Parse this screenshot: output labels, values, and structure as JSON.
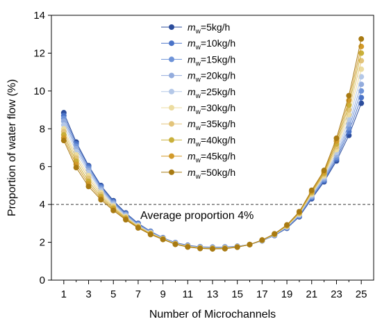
{
  "chart_data": {
    "type": "line",
    "xlabel": "Number of Microchannels",
    "ylabel": "Proportion of water flow (%)",
    "xlim": [
      0,
      26
    ],
    "ylim": [
      0,
      14
    ],
    "x_ticks": [
      1,
      3,
      5,
      7,
      9,
      11,
      13,
      15,
      17,
      19,
      21,
      23,
      25
    ],
    "y_ticks": [
      0,
      2,
      4,
      6,
      8,
      10,
      12,
      14
    ],
    "x": [
      1,
      2,
      3,
      4,
      5,
      6,
      7,
      8,
      9,
      10,
      11,
      12,
      13,
      14,
      15,
      16,
      17,
      18,
      19,
      20,
      21,
      22,
      23,
      24,
      25
    ],
    "reference_line": {
      "y": 4,
      "style": "dashed",
      "label": "Average proportion 4%"
    },
    "legend_position": "top-center",
    "legend_symbol": "m",
    "legend_subscript": "w",
    "series": [
      {
        "name": "=5kg/h",
        "color": "#2b4c9b",
        "values": [
          8.85,
          7.3,
          6.05,
          5.0,
          4.2,
          3.55,
          3.0,
          2.58,
          2.24,
          1.98,
          1.84,
          1.76,
          1.74,
          1.75,
          1.79,
          1.88,
          2.08,
          2.36,
          2.74,
          3.35,
          4.3,
          5.2,
          6.3,
          7.65,
          9.35
        ]
      },
      {
        "name": "=10kg/h",
        "color": "#4a73c8",
        "values": [
          8.7,
          7.2,
          6.0,
          4.95,
          4.15,
          3.52,
          2.98,
          2.57,
          2.23,
          1.97,
          1.83,
          1.75,
          1.73,
          1.74,
          1.78,
          1.88,
          2.08,
          2.37,
          2.76,
          3.38,
          4.35,
          5.25,
          6.4,
          7.85,
          9.65
        ]
      },
      {
        "name": "=15kg/h",
        "color": "#6e93d8",
        "values": [
          8.55,
          7.08,
          5.9,
          4.88,
          4.1,
          3.48,
          2.95,
          2.55,
          2.22,
          1.96,
          1.82,
          1.74,
          1.72,
          1.73,
          1.78,
          1.88,
          2.09,
          2.38,
          2.78,
          3.41,
          4.4,
          5.32,
          6.5,
          8.05,
          10.0
        ]
      },
      {
        "name": "=20kg/h",
        "color": "#93acdd",
        "values": [
          8.4,
          6.95,
          5.8,
          4.8,
          4.05,
          3.45,
          2.92,
          2.53,
          2.21,
          1.95,
          1.81,
          1.73,
          1.71,
          1.72,
          1.77,
          1.88,
          2.09,
          2.39,
          2.8,
          3.44,
          4.45,
          5.38,
          6.62,
          8.25,
          10.35
        ]
      },
      {
        "name": "=25kg/h",
        "color": "#b4c8e8",
        "values": [
          8.2,
          6.8,
          5.68,
          4.72,
          3.98,
          3.4,
          2.89,
          2.51,
          2.2,
          1.94,
          1.8,
          1.72,
          1.7,
          1.71,
          1.77,
          1.88,
          2.1,
          2.4,
          2.82,
          3.47,
          4.5,
          5.45,
          6.75,
          8.5,
          10.75
        ]
      },
      {
        "name": "=30kg/h",
        "color": "#ecdca0",
        "values": [
          8.0,
          6.62,
          5.52,
          4.62,
          3.92,
          3.35,
          2.86,
          2.49,
          2.19,
          1.93,
          1.79,
          1.71,
          1.69,
          1.7,
          1.76,
          1.88,
          2.1,
          2.41,
          2.84,
          3.5,
          4.55,
          5.52,
          6.9,
          8.75,
          11.15
        ]
      },
      {
        "name": "=35kg/h",
        "color": "#e3c47a",
        "values": [
          7.85,
          6.45,
          5.38,
          4.52,
          3.86,
          3.31,
          2.83,
          2.47,
          2.18,
          1.92,
          1.78,
          1.7,
          1.68,
          1.69,
          1.76,
          1.88,
          2.11,
          2.42,
          2.86,
          3.53,
          4.6,
          5.58,
          7.05,
          9.0,
          11.6
        ]
      },
      {
        "name": "=40kg/h",
        "color": "#c9b03a",
        "values": [
          7.68,
          6.28,
          5.22,
          4.42,
          3.8,
          3.27,
          2.8,
          2.45,
          2.17,
          1.91,
          1.77,
          1.69,
          1.67,
          1.68,
          1.75,
          1.88,
          2.11,
          2.43,
          2.88,
          3.56,
          4.65,
          5.65,
          7.2,
          9.25,
          12.0
        ]
      },
      {
        "name": "=45kg/h",
        "color": "#d29a2a",
        "values": [
          7.52,
          6.12,
          5.08,
          4.33,
          3.74,
          3.23,
          2.78,
          2.43,
          2.16,
          1.9,
          1.76,
          1.68,
          1.66,
          1.67,
          1.75,
          1.88,
          2.12,
          2.44,
          2.9,
          3.59,
          4.7,
          5.72,
          7.35,
          9.5,
          12.35
        ]
      },
      {
        "name": "=50kg/h",
        "color": "#a87a12",
        "values": [
          7.38,
          5.95,
          4.95,
          4.25,
          3.68,
          3.19,
          2.76,
          2.41,
          2.15,
          1.89,
          1.75,
          1.67,
          1.65,
          1.66,
          1.74,
          1.88,
          2.12,
          2.45,
          2.92,
          3.62,
          4.75,
          5.8,
          7.5,
          9.75,
          12.75
        ]
      }
    ]
  }
}
